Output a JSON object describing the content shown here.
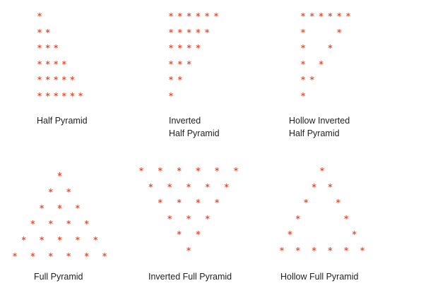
{
  "star_glyph": "*",
  "star_color": "#f04e2e",
  "patterns": [
    {
      "caption": [
        "Half Pyramid"
      ],
      "grid_cols": [
        0,
        1,
        2,
        3,
        4,
        5
      ],
      "grid_rows": [
        0,
        1,
        2,
        3,
        4,
        5
      ],
      "cells": [
        [
          0,
          0
        ],
        [
          0,
          1
        ],
        [
          1,
          1
        ],
        [
          0,
          2
        ],
        [
          1,
          2
        ],
        [
          2,
          2
        ],
        [
          0,
          3
        ],
        [
          1,
          3
        ],
        [
          2,
          3
        ],
        [
          3,
          3
        ],
        [
          0,
          4
        ],
        [
          1,
          4
        ],
        [
          2,
          4
        ],
        [
          3,
          4
        ],
        [
          4,
          4
        ],
        [
          0,
          5
        ],
        [
          1,
          5
        ],
        [
          2,
          5
        ],
        [
          3,
          5
        ],
        [
          4,
          5
        ],
        [
          5,
          5
        ]
      ]
    },
    {
      "caption": [
        "Inverted",
        "Half Pyramid"
      ],
      "cells": [
        [
          0,
          0
        ],
        [
          1,
          0
        ],
        [
          2,
          0
        ],
        [
          3,
          0
        ],
        [
          4,
          0
        ],
        [
          5,
          0
        ],
        [
          0,
          1
        ],
        [
          1,
          1
        ],
        [
          2,
          1
        ],
        [
          3,
          1
        ],
        [
          4,
          1
        ],
        [
          0,
          2
        ],
        [
          1,
          2
        ],
        [
          2,
          2
        ],
        [
          3,
          2
        ],
        [
          0,
          3
        ],
        [
          1,
          3
        ],
        [
          2,
          3
        ],
        [
          0,
          4
        ],
        [
          1,
          4
        ],
        [
          0,
          5
        ]
      ]
    },
    {
      "caption": [
        "Hollow Inverted",
        "Half Pyramid"
      ],
      "cells": [
        [
          0,
          0
        ],
        [
          1,
          0
        ],
        [
          2,
          0
        ],
        [
          3,
          0
        ],
        [
          4,
          0
        ],
        [
          5,
          0
        ],
        [
          0,
          1
        ],
        [
          4,
          1
        ],
        [
          0,
          2
        ],
        [
          3,
          2
        ],
        [
          0,
          3
        ],
        [
          2,
          3
        ],
        [
          0,
          4
        ],
        [
          1,
          4
        ],
        [
          0,
          5
        ]
      ]
    },
    {
      "caption": [
        "Full Pyramid"
      ],
      "cells": [
        [
          5,
          0
        ],
        [
          4,
          1
        ],
        [
          6,
          1
        ],
        [
          3,
          2
        ],
        [
          5,
          2
        ],
        [
          7,
          2
        ],
        [
          2,
          3
        ],
        [
          4,
          3
        ],
        [
          6,
          3
        ],
        [
          8,
          3
        ],
        [
          1,
          4
        ],
        [
          3,
          4
        ],
        [
          5,
          4
        ],
        [
          7,
          4
        ],
        [
          9,
          4
        ],
        [
          0,
          5
        ],
        [
          2,
          5
        ],
        [
          4,
          5
        ],
        [
          6,
          5
        ],
        [
          8,
          5
        ],
        [
          10,
          5
        ]
      ]
    },
    {
      "caption": [
        "Inverted Full Pyramid"
      ],
      "cells": [
        [
          0,
          0
        ],
        [
          2,
          0
        ],
        [
          4,
          0
        ],
        [
          6,
          0
        ],
        [
          8,
          0
        ],
        [
          10,
          0
        ],
        [
          1,
          1
        ],
        [
          3,
          1
        ],
        [
          5,
          1
        ],
        [
          7,
          1
        ],
        [
          9,
          1
        ],
        [
          2,
          2
        ],
        [
          4,
          2
        ],
        [
          6,
          2
        ],
        [
          8,
          2
        ],
        [
          3,
          3
        ],
        [
          5,
          3
        ],
        [
          7,
          3
        ],
        [
          4,
          4
        ],
        [
          6,
          4
        ],
        [
          5,
          5
        ]
      ]
    },
    {
      "caption": [
        "Hollow Full Pyramid"
      ],
      "cells": [
        [
          5,
          0
        ],
        [
          4,
          1
        ],
        [
          6,
          1
        ],
        [
          3,
          2
        ],
        [
          7,
          2
        ],
        [
          2,
          3
        ],
        [
          8,
          3
        ],
        [
          1,
          4
        ],
        [
          9,
          4
        ],
        [
          0,
          5
        ],
        [
          2,
          5
        ],
        [
          4,
          5
        ],
        [
          6,
          5
        ],
        [
          8,
          5
        ],
        [
          10,
          5
        ]
      ]
    }
  ]
}
